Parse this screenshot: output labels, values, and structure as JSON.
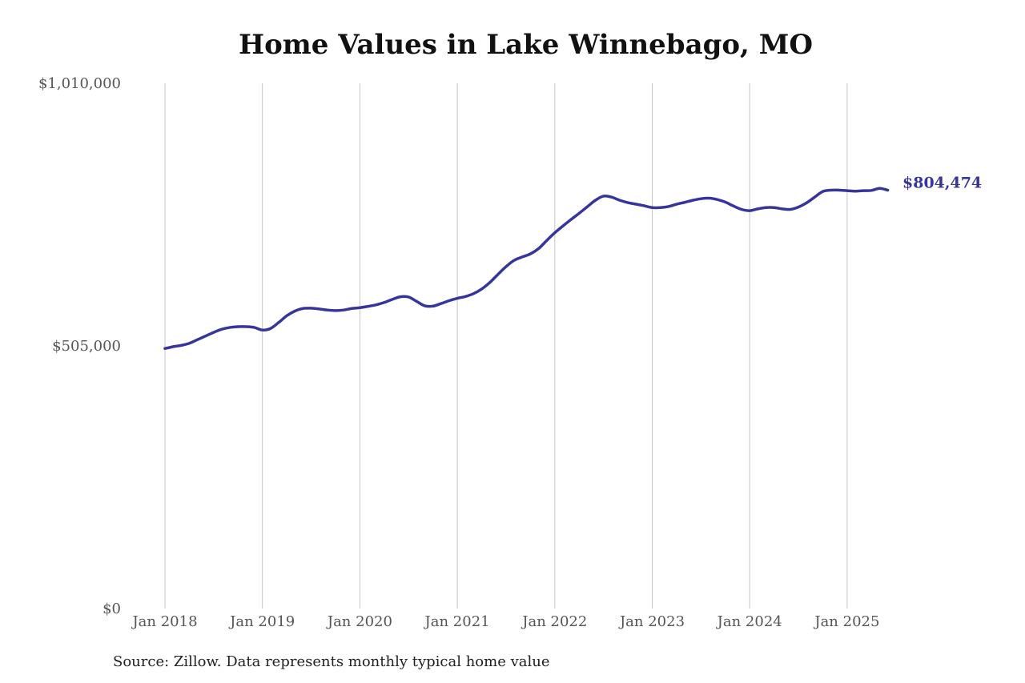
{
  "chart_data": {
    "type": "line",
    "title": "Home Values in Lake Winnebago, MO",
    "xlabel": "",
    "ylabel": "",
    "ylim": [
      0,
      1010000
    ],
    "y_ticks": [
      {
        "value": 0,
        "label": "$0"
      },
      {
        "value": 505000,
        "label": "$505,000"
      },
      {
        "value": 1010000,
        "label": "$1,010,000"
      }
    ],
    "x_ticks": [
      {
        "value": "2018-01",
        "label": "Jan 2018"
      },
      {
        "value": "2019-01",
        "label": "Jan 2019"
      },
      {
        "value": "2020-01",
        "label": "Jan 2020"
      },
      {
        "value": "2021-01",
        "label": "Jan 2021"
      },
      {
        "value": "2022-01",
        "label": "Jan 2022"
      },
      {
        "value": "2023-01",
        "label": "Jan 2023"
      },
      {
        "value": "2024-01",
        "label": "Jan 2024"
      },
      {
        "value": "2025-01",
        "label": "Jan 2025"
      }
    ],
    "grid": {
      "vertical": true,
      "horizontal": false
    },
    "series_color": "#37349b",
    "series": [
      {
        "x": [
          "2018-01",
          "2018-02",
          "2018-03",
          "2018-04",
          "2018-05",
          "2018-06",
          "2018-07",
          "2018-08",
          "2018-09",
          "2018-10",
          "2018-11",
          "2018-12",
          "2019-01",
          "2019-02",
          "2019-03",
          "2019-04",
          "2019-05",
          "2019-06",
          "2019-07",
          "2019-08",
          "2019-09",
          "2019-10",
          "2019-11",
          "2019-12",
          "2020-01",
          "2020-02",
          "2020-03",
          "2020-04",
          "2020-05",
          "2020-06",
          "2020-07",
          "2020-08",
          "2020-09",
          "2020-10",
          "2020-11",
          "2020-12",
          "2021-01",
          "2021-02",
          "2021-03",
          "2021-04",
          "2021-05",
          "2021-06",
          "2021-07",
          "2021-08",
          "2021-09",
          "2021-10",
          "2021-11",
          "2021-12",
          "2022-01",
          "2022-02",
          "2022-03",
          "2022-04",
          "2022-05",
          "2022-06",
          "2022-07",
          "2022-08",
          "2022-09",
          "2022-10",
          "2022-11",
          "2022-12",
          "2023-01",
          "2023-02",
          "2023-03",
          "2023-04",
          "2023-05",
          "2023-06",
          "2023-07",
          "2023-08",
          "2023-09",
          "2023-10",
          "2023-11",
          "2023-12",
          "2024-01",
          "2024-02",
          "2024-03",
          "2024-04",
          "2024-05",
          "2024-06",
          "2024-07",
          "2024-08",
          "2024-09",
          "2024-10",
          "2024-11",
          "2024-12",
          "2025-01",
          "2025-02",
          "2025-03",
          "2025-04",
          "2025-05",
          "2025-06"
        ],
        "values": [
          500000,
          503500,
          506000,
          510000,
          517000,
          524000,
          531000,
          537000,
          540500,
          542000,
          542000,
          540500,
          535500,
          538500,
          550000,
          563000,
          572000,
          577000,
          577500,
          576000,
          574000,
          573000,
          574000,
          577000,
          578500,
          581000,
          584000,
          588500,
          594500,
          599500,
          599000,
          590500,
          582000,
          581500,
          586500,
          592000,
          596500,
          600000,
          605500,
          614500,
          627000,
          642500,
          657500,
          669500,
          676000,
          682000,
          692000,
          707500,
          722500,
          735500,
          748000,
          760000,
          772500,
          785000,
          793000,
          791000,
          785000,
          780500,
          777500,
          774500,
          771000,
          771000,
          773000,
          777500,
          781000,
          785000,
          788000,
          789000,
          786500,
          781500,
          774000,
          767500,
          765000,
          768500,
          771000,
          771000,
          768500,
          767500,
          772000,
          780000,
          791000,
          802000,
          804500,
          804500,
          803500,
          802500,
          803500,
          804000,
          808000,
          804474
        ]
      }
    ],
    "end_label": "$804,474"
  },
  "footer": {
    "source": "Source: Zillow. Data represents monthly typical home value"
  }
}
